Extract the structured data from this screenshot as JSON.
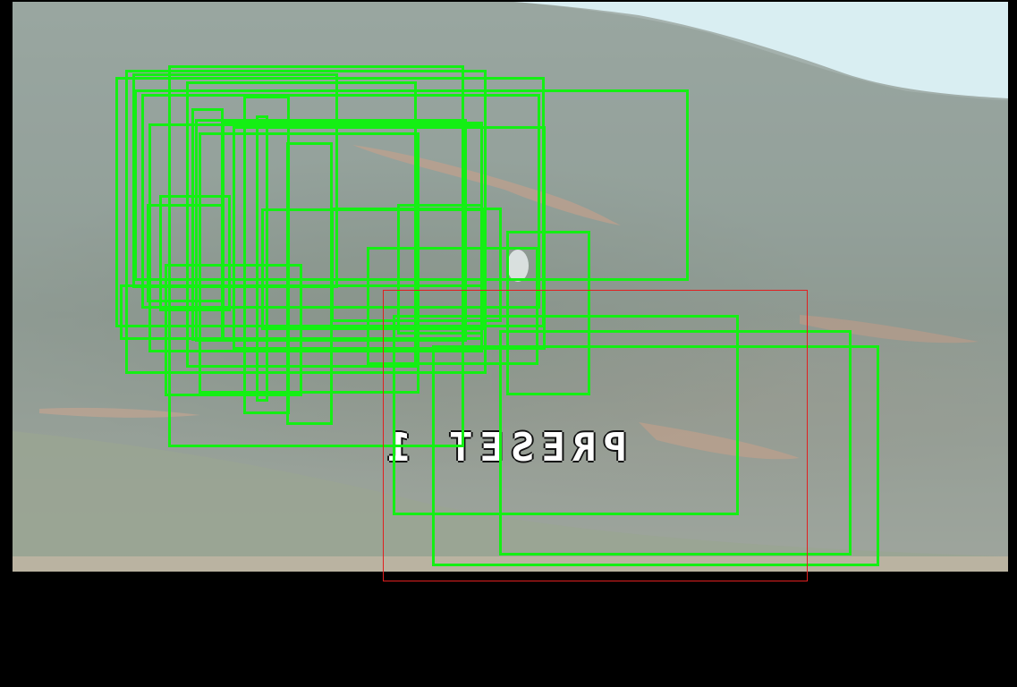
{
  "osd": {
    "preset_label": "PRESET 1"
  },
  "colors": {
    "detection_box": "#14ef14",
    "roi_box": "#e02020",
    "letterbox": "#000000"
  },
  "detections_count_visible": "many",
  "notes": ""
}
